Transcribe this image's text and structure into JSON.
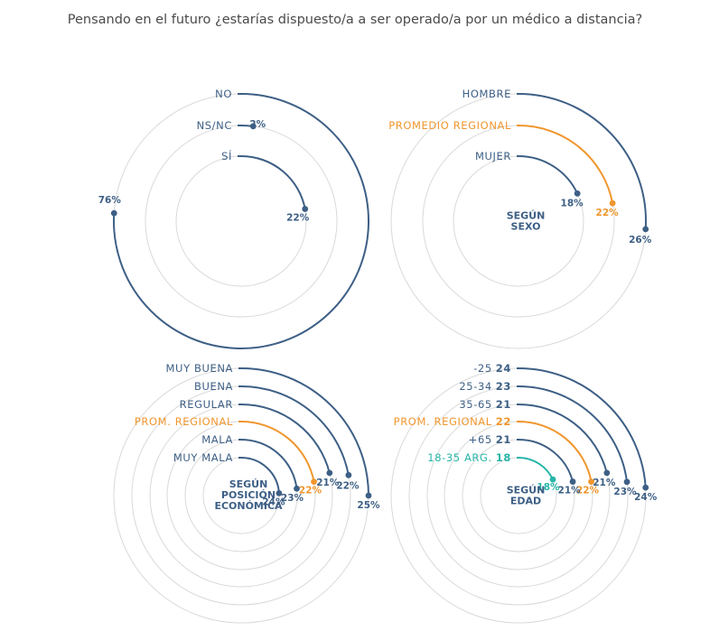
{
  "title": "Pensando en el futuro ¿estarías dispuesto/a a ser operado/a por un médico a distancia?",
  "colors": {
    "blue": "#3d5f85",
    "orange": "#f0962e",
    "teal": "#27b5a8",
    "grid": "#d9d9d9"
  },
  "chart_data": [
    {
      "type": "radial-bar",
      "center_label": [],
      "series": [
        {
          "label": "NO",
          "value": 76,
          "value_label": "76%",
          "color": "blue"
        },
        {
          "label": "NS/NC",
          "value": 2,
          "value_label": "2%",
          "color": "blue"
        },
        {
          "label": "SÍ",
          "value": 22,
          "value_label": "22%",
          "color": "blue"
        }
      ]
    },
    {
      "type": "radial-bar",
      "center_label": [
        "SEGÚN",
        "SEXO"
      ],
      "series": [
        {
          "label": "HOMBRE",
          "value": 26,
          "value_label": "26%",
          "color": "blue"
        },
        {
          "label": "PROMEDIO REGIONAL",
          "value": 22,
          "value_label": "22%",
          "color": "orange"
        },
        {
          "label": "MUJER",
          "value": 18,
          "value_label": "18%",
          "color": "blue"
        }
      ]
    },
    {
      "type": "radial-bar",
      "center_label": [
        "SEGÚN",
        "POSICIÓN",
        "ECONÓMICA"
      ],
      "series": [
        {
          "label": "MUY BUENA",
          "value": 25,
          "value_label": "25%",
          "color": "blue"
        },
        {
          "label": "BUENA",
          "value": 22,
          "value_label": "22%",
          "color": "blue"
        },
        {
          "label": "REGULAR",
          "value": 21,
          "value_label": "21%",
          "color": "blue"
        },
        {
          "label": "PROM. REGIONAL",
          "value": 22,
          "value_label": "22%",
          "color": "orange"
        },
        {
          "label": "MALA",
          "value": 23,
          "value_label": "23%",
          "color": "blue"
        },
        {
          "label": "MUY MALA",
          "value": 24,
          "value_label": "24%",
          "color": "blue"
        }
      ]
    },
    {
      "type": "radial-bar",
      "center_label": [
        "SEGÚN",
        "EDAD"
      ],
      "series": [
        {
          "label": "-25",
          "bold": "24",
          "value": 24,
          "value_label": "24%",
          "color": "blue"
        },
        {
          "label": "25-34",
          "bold": "23",
          "value": 23,
          "value_label": "23%",
          "color": "blue"
        },
        {
          "label": "35-65",
          "bold": "21",
          "value": 21,
          "value_label": "21%",
          "color": "blue"
        },
        {
          "label": "PROM. REGIONAL",
          "bold": "22",
          "value": 22,
          "value_label": "22%",
          "color": "orange"
        },
        {
          "label": "+65",
          "bold": "21",
          "value": 21,
          "value_label": "21%",
          "color": "blue"
        },
        {
          "label": "18-35 ARG.",
          "bold": "18",
          "value": 18,
          "value_label": "18%",
          "color": "teal"
        }
      ]
    }
  ]
}
